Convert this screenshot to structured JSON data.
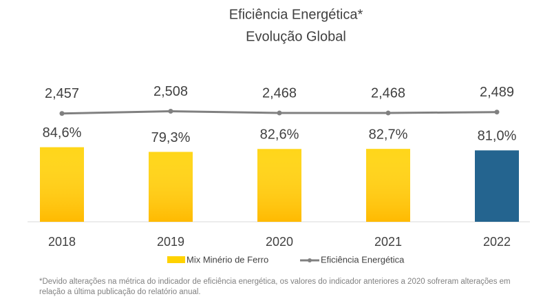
{
  "chart_data": {
    "type": "bar",
    "title": "Eficiência Energética*",
    "subtitle": "Evolução Global",
    "categories": [
      "2018",
      "2019",
      "2020",
      "2021",
      "2022"
    ],
    "series": [
      {
        "name": "Mix Minério de Ferro",
        "type": "bar",
        "colors": [
          "#ffd200",
          "#ffd200",
          "#ffd200",
          "#ffd200",
          "#24648f"
        ],
        "values": [
          84.6,
          79.3,
          82.6,
          82.7,
          81.0
        ],
        "value_labels": [
          "84,6%",
          "79,3%",
          "82,6%",
          "82,7%",
          "81,0%"
        ]
      },
      {
        "name": "Eficiência Energética",
        "type": "line",
        "axis": "y2",
        "color": "#808080",
        "values": [
          2.457,
          2.508,
          2.468,
          2.468,
          2.489
        ],
        "value_labels": [
          "2,457",
          "2,508",
          "2,468",
          "2,468",
          "2,489"
        ]
      }
    ],
    "ylim": [
      0,
      200
    ],
    "y2lim": [
      0,
      4
    ],
    "annotation": "*Devido alterações na métrica do indicador de eficiência energética, os valores do indicador anteriores a 2020 sofreram alterações em relação a última publicação do relatório anual."
  }
}
